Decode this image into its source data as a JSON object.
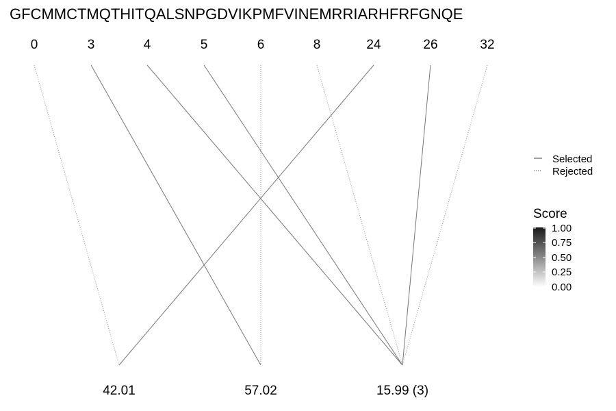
{
  "sequence": "GFCMMCTMQTHITQALSNPGDVIKPMFVINEMRRIARHFRFGNQE",
  "top_positions": [
    "0",
    "3",
    "4",
    "5",
    "6",
    "8",
    "24",
    "26",
    "32"
  ],
  "bottom_masses": [
    "42.01",
    "57.02",
    "15.99 (3)"
  ],
  "links": [
    {
      "from": "0",
      "to": "42.01",
      "status": "Rejected",
      "score": 0.5
    },
    {
      "from": "3",
      "to": "57.02",
      "status": "Selected",
      "score": 0.5
    },
    {
      "from": "4",
      "to": "15.99 (3)",
      "status": "Selected",
      "score": 0.5
    },
    {
      "from": "5",
      "to": "15.99 (3)",
      "status": "Selected",
      "score": 0.5
    },
    {
      "from": "6",
      "to": "57.02",
      "status": "Rejected",
      "score": 0.5
    },
    {
      "from": "8",
      "to": "15.99 (3)",
      "status": "Rejected",
      "score": 0.5
    },
    {
      "from": "24",
      "to": "42.01",
      "status": "Selected",
      "score": 0.5
    },
    {
      "from": "26",
      "to": "15.99 (3)",
      "status": "Selected",
      "score": 0.5
    },
    {
      "from": "32",
      "to": "15.99 (3)",
      "status": "Rejected",
      "score": 0.5
    }
  ],
  "legend": {
    "linetype": [
      {
        "label": "Selected",
        "style": "solid"
      },
      {
        "label": "Rejected",
        "style": "dotted"
      }
    ],
    "score": {
      "title": "Score",
      "ticks": [
        "1.00",
        "0.75",
        "0.50",
        "0.25",
        "0.00"
      ],
      "color_high": "#1a1a1a",
      "color_low": "#ffffff"
    }
  }
}
